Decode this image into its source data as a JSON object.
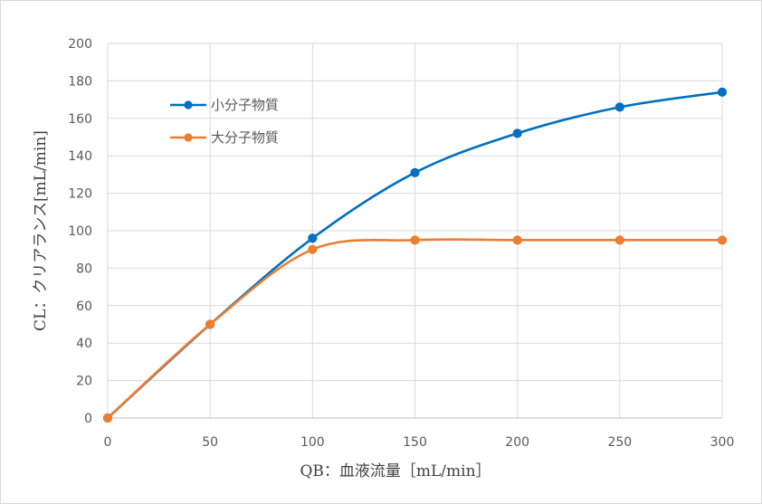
{
  "chart_data": {
    "type": "line",
    "title": "",
    "xlabel": "QB：血液流量［mL/min］",
    "ylabel": "CL：クリアランス[mL/min]",
    "x": [
      0,
      50,
      100,
      150,
      200,
      250,
      300
    ],
    "xlim": [
      0,
      300
    ],
    "ylim": [
      0,
      200
    ],
    "xticks": [
      0,
      50,
      100,
      150,
      200,
      250,
      300
    ],
    "yticks": [
      0,
      20,
      40,
      60,
      80,
      100,
      120,
      140,
      160,
      180,
      200
    ],
    "grid": true,
    "smooth": true,
    "legend_position": "top-left",
    "series": [
      {
        "name": "小分子物質",
        "color": "#0070C0",
        "values": [
          0,
          50,
          96,
          131,
          152,
          166,
          174
        ]
      },
      {
        "name": "大分子物質",
        "color": "#ED7D31",
        "values": [
          0,
          50,
          90,
          95,
          95,
          95,
          95
        ]
      }
    ]
  }
}
